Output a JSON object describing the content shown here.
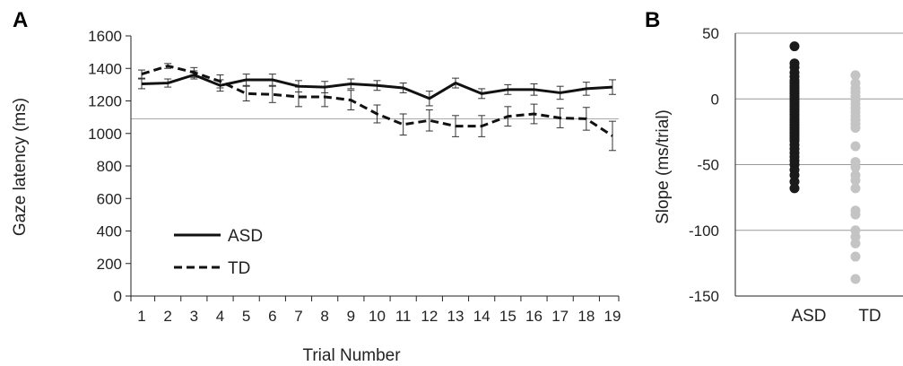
{
  "chart_data": [
    {
      "panel": "A",
      "type": "line",
      "xlabel": "Trial Number",
      "ylabel": "Gaze latency (ms)",
      "ylim": [
        0,
        1600
      ],
      "yticks": [
        0,
        200,
        400,
        600,
        800,
        1000,
        1200,
        1400,
        1600
      ],
      "x": [
        1,
        2,
        3,
        4,
        5,
        6,
        7,
        8,
        9,
        10,
        11,
        12,
        13,
        14,
        15,
        16,
        17,
        18,
        19
      ],
      "reference_line": 1090,
      "legend_position": "bottom-left",
      "series": [
        {
          "name": "ASD",
          "style": "solid",
          "values": [
            1305,
            1310,
            1360,
            1295,
            1330,
            1330,
            1290,
            1285,
            1305,
            1295,
            1280,
            1215,
            1310,
            1245,
            1270,
            1270,
            1250,
            1275,
            1285
          ],
          "errors": [
            30,
            25,
            25,
            35,
            35,
            35,
            35,
            35,
            30,
            30,
            30,
            45,
            30,
            30,
            30,
            35,
            40,
            40,
            45
          ]
        },
        {
          "name": "TD",
          "style": "dashed",
          "values": [
            1365,
            1415,
            1375,
            1320,
            1245,
            1240,
            1225,
            1225,
            1205,
            1120,
            1055,
            1080,
            1045,
            1045,
            1105,
            1120,
            1095,
            1090,
            985
          ],
          "errors": [
            25,
            15,
            30,
            40,
            45,
            50,
            60,
            60,
            60,
            55,
            65,
            65,
            65,
            65,
            60,
            60,
            60,
            70,
            90
          ]
        }
      ]
    },
    {
      "panel": "B",
      "type": "scatter",
      "categories": [
        "ASD",
        "TD"
      ],
      "ylabel": "Slope (ms/trial)",
      "ylim": [
        -150,
        50
      ],
      "yticks": [
        -150,
        -100,
        -50,
        0,
        50
      ],
      "grid": true,
      "colors": {
        "ASD": "#1a1a1a",
        "TD": "#c4c4c4"
      },
      "points": {
        "ASD": [
          40,
          27,
          24,
          20,
          17,
          14,
          12,
          10,
          8,
          6,
          4,
          2,
          0,
          -2,
          -4,
          -6,
          -8,
          -10,
          -12,
          -14,
          -16,
          -18,
          -20,
          -22,
          -24,
          -26,
          -28,
          -30,
          -32,
          -35,
          -38,
          -41,
          -44,
          -47,
          -50,
          -54,
          -58,
          -63,
          -68
        ],
        "TD": [
          18,
          12,
          8,
          5,
          2,
          -1,
          -4,
          -7,
          -10,
          -13,
          -16,
          -19,
          -22,
          -36,
          -48,
          -52,
          -58,
          -62,
          -68,
          -85,
          -88,
          -100,
          -105,
          -110,
          -120,
          -137
        ]
      }
    }
  ],
  "panel_labels": {
    "a": "A",
    "b": "B"
  },
  "colors": {
    "axis": "#222222",
    "grid": "#999999",
    "asd": "#1a1a1a",
    "td": "#c4c4c4"
  }
}
